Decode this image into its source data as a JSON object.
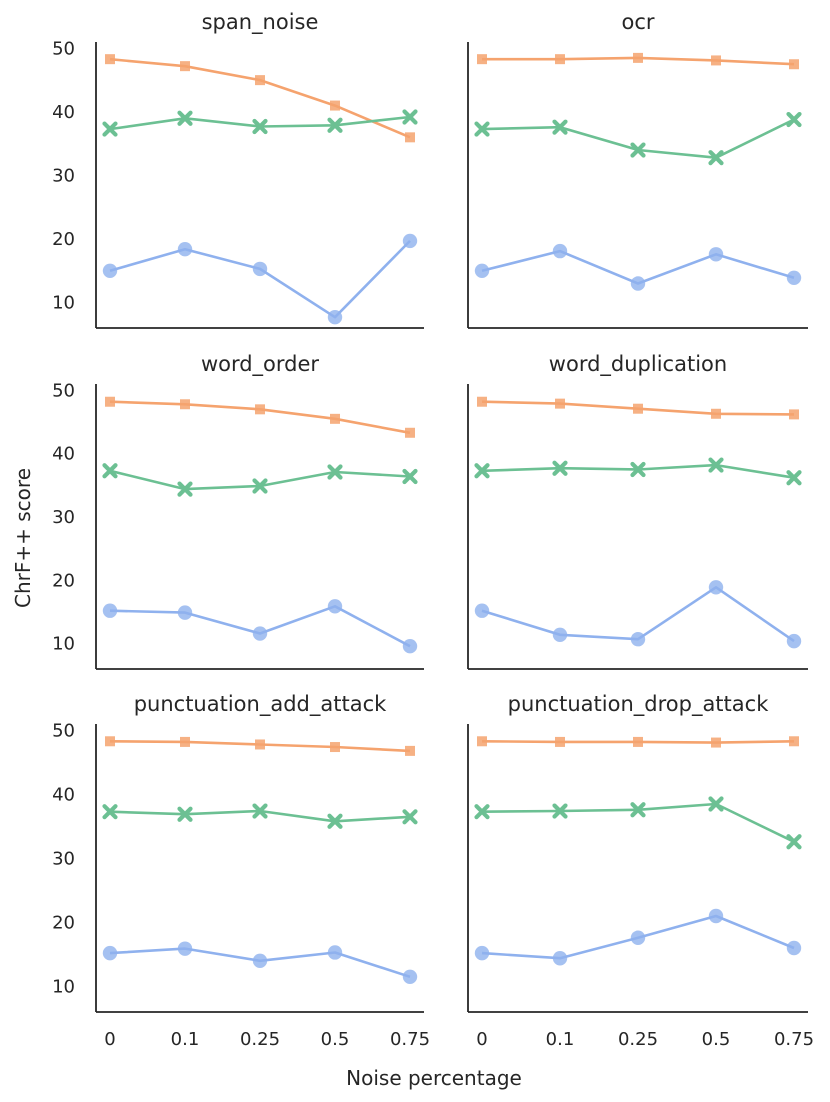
{
  "chart_data": {
    "type": "line",
    "xlabel": "Noise percentage",
    "ylabel": "ChrF++ score",
    "ylim": [
      6,
      51
    ],
    "yticks": [
      10,
      20,
      30,
      40,
      50
    ],
    "categories": [
      "0",
      "0.1",
      "0.25",
      "0.5",
      "0.75"
    ],
    "series_styles": [
      {
        "color": "#f5a36e",
        "marker": "square"
      },
      {
        "color": "#6cc093",
        "marker": "x"
      },
      {
        "color": "#8fb1ee",
        "marker": "circle"
      }
    ],
    "panels": [
      {
        "title": "span_noise",
        "series": [
          {
            "values": [
              48.3,
              47.2,
              45.0,
              41.0,
              36.0
            ]
          },
          {
            "values": [
              37.3,
              39.0,
              37.7,
              37.9,
              39.2
            ]
          },
          {
            "values": [
              15.0,
              18.4,
              15.3,
              7.7,
              19.7
            ]
          }
        ]
      },
      {
        "title": "ocr",
        "series": [
          {
            "values": [
              48.3,
              48.3,
              48.5,
              48.1,
              47.5
            ]
          },
          {
            "values": [
              37.3,
              37.6,
              34.0,
              32.8,
              38.8
            ]
          },
          {
            "values": [
              15.0,
              18.1,
              13.0,
              17.6,
              13.9
            ]
          }
        ]
      },
      {
        "title": "word_order",
        "series": [
          {
            "values": [
              48.2,
              47.8,
              47.0,
              45.5,
              43.3
            ]
          },
          {
            "values": [
              37.3,
              34.4,
              34.9,
              37.1,
              36.4
            ]
          },
          {
            "values": [
              15.2,
              14.9,
              11.6,
              15.9,
              9.6
            ]
          }
        ]
      },
      {
        "title": "word_duplication",
        "series": [
          {
            "values": [
              48.2,
              47.9,
              47.1,
              46.3,
              46.2
            ]
          },
          {
            "values": [
              37.3,
              37.7,
              37.5,
              38.2,
              36.2
            ]
          },
          {
            "values": [
              15.2,
              11.4,
              10.7,
              18.9,
              10.4
            ]
          }
        ]
      },
      {
        "title": "punctuation_add_attack",
        "series": [
          {
            "values": [
              48.3,
              48.2,
              47.8,
              47.4,
              46.8
            ]
          },
          {
            "values": [
              37.3,
              36.9,
              37.4,
              35.8,
              36.5
            ]
          },
          {
            "values": [
              15.2,
              15.9,
              14.0,
              15.3,
              11.5
            ]
          }
        ]
      },
      {
        "title": "punctuation_drop_attack",
        "series": [
          {
            "values": [
              48.3,
              48.2,
              48.2,
              48.1,
              48.3
            ]
          },
          {
            "values": [
              37.3,
              37.4,
              37.6,
              38.5,
              32.6
            ]
          },
          {
            "values": [
              15.2,
              14.4,
              17.6,
              21.0,
              16.0
            ]
          }
        ]
      }
    ]
  }
}
